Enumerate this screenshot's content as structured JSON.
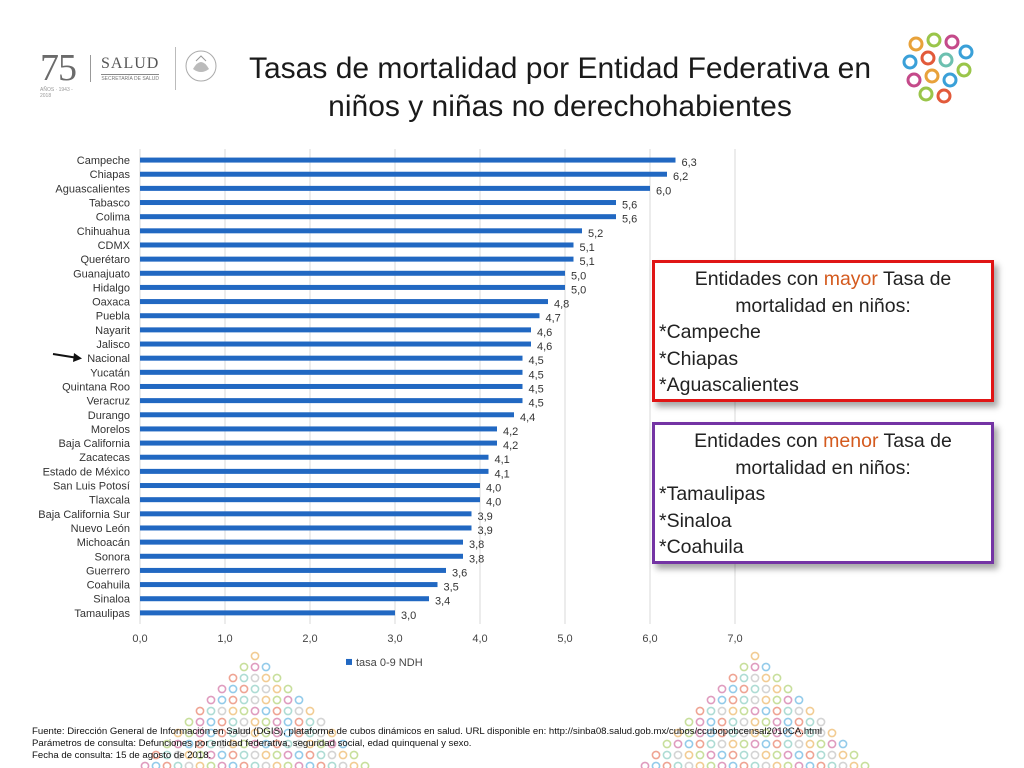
{
  "header": {
    "logo_75": "75",
    "logo_75_sub": "AÑOS · 1943 - 2018",
    "logo_salud": "SALUD",
    "logo_salud_sub": "SECRETARÍA DE SALUD",
    "title_line1": "Tasas de mortalidad por Entidad Federativa en",
    "title_line2": "niños y niñas no derechohabientes"
  },
  "chart_data": {
    "type": "bar",
    "orientation": "horizontal",
    "categories": [
      "Campeche",
      "Chiapas",
      "Aguascalientes",
      "Tabasco",
      "Colima",
      "Chihuahua",
      "CDMX",
      "Querétaro",
      "Guanajuato",
      "Hidalgo",
      "Oaxaca",
      "Puebla",
      "Nayarit",
      "Jalisco",
      "Nacional",
      "Yucatán",
      "Quintana Roo",
      "Veracruz",
      "Durango",
      "Morelos",
      "Baja California",
      "Zacatecas",
      "Estado de México",
      "San Luis Potosí",
      "Tlaxcala",
      "Baja California Sur",
      "Nuevo León",
      "Michoacán",
      "Sonora",
      "Guerrero",
      "Coahuila",
      "Sinaloa",
      "Tamaulipas"
    ],
    "values": [
      6.3,
      6.2,
      6.0,
      5.6,
      5.6,
      5.2,
      5.1,
      5.1,
      5.0,
      5.0,
      4.8,
      4.7,
      4.6,
      4.6,
      4.5,
      4.5,
      4.5,
      4.5,
      4.4,
      4.2,
      4.2,
      4.1,
      4.1,
      4.0,
      4.0,
      3.9,
      3.9,
      3.8,
      3.8,
      3.6,
      3.5,
      3.4,
      3.0
    ],
    "value_labels": [
      "6,3",
      "6,2",
      "6,0",
      "5,6",
      "5,6",
      "5,2",
      "5,1",
      "5,1",
      "5,0",
      "5,0",
      "4,8",
      "4,7",
      "4,6",
      "4,6",
      "4,5",
      "4,5",
      "4,5",
      "4,5",
      "4,4",
      "4,2",
      "4,2",
      "4,1",
      "4,1",
      "4,0",
      "4,0",
      "3,9",
      "3,9",
      "3,8",
      "3,8",
      "3,6",
      "3,5",
      "3,4",
      "3,0"
    ],
    "xlim": [
      0,
      7
    ],
    "xticks": [
      "0,0",
      "1,0",
      "2,0",
      "3,0",
      "4,0",
      "5,0",
      "6,0",
      "7,0"
    ],
    "legend": "tasa 0-9 NDH",
    "bar_color": "#2168c2",
    "grid": true,
    "highlighted_category": "Nacional"
  },
  "box_mayor": {
    "line1_pre": "Entidades con ",
    "line1_hl": "mayor",
    "line1_post": " Tasa de",
    "line2": "mortalidad en niños:",
    "items": [
      "*Campeche",
      "*Chiapas",
      "*Aguascalientes"
    ]
  },
  "box_menor": {
    "line1_pre": "Entidades con ",
    "line1_hl": "menor",
    "line1_post": " Tasa de",
    "line2": "mortalidad en niños:",
    "items": [
      "*Tamaulipas",
      "*Sinaloa",
      "*Coahuila"
    ]
  },
  "footer": {
    "line1": "Fuente: Dirección General de Información en Salud (DGIS), plataforma de cubos dinámicos en salud. URL disponible en: http://sinba08.salud.gob.mx/cubos/ccubopobcensal2010CA.html",
    "line2": "Parámetros de consulta: Defunciones por entidad federativa, seguridad social, edad quinquenal y sexo.",
    "line3": "Fecha de consulta: 15 de agosto de 2018."
  },
  "colors": {
    "accent_orange": "#d45a1e",
    "box_red": "#e01515",
    "box_purple": "#7434a4"
  }
}
